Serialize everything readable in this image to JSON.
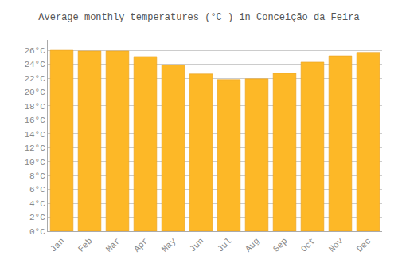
{
  "chart_data": {
    "type": "bar",
    "title": "Average monthly temperatures (°C ) in Conceição da Feira",
    "categories": [
      "Jan",
      "Feb",
      "Mar",
      "Apr",
      "May",
      "Jun",
      "Jul",
      "Aug",
      "Sep",
      "Oct",
      "Nov",
      "Dec"
    ],
    "values": [
      26.0,
      25.9,
      25.9,
      25.1,
      23.9,
      22.6,
      21.8,
      21.9,
      22.7,
      24.3,
      25.2,
      25.7
    ],
    "color": "#FDB827",
    "ylim": [
      0,
      27.5
    ],
    "yticks": [
      {
        "value": 0,
        "label": "0°C"
      },
      {
        "value": 2,
        "label": "2°C"
      },
      {
        "value": 4,
        "label": "4°C"
      },
      {
        "value": 6,
        "label": "6°C"
      },
      {
        "value": 8,
        "label": "8°C"
      },
      {
        "value": 10,
        "label": "10°C"
      },
      {
        "value": 12,
        "label": "12°C"
      },
      {
        "value": 14,
        "label": "14°C"
      },
      {
        "value": 16,
        "label": "16°C"
      },
      {
        "value": 18,
        "label": "18°C"
      },
      {
        "value": 20,
        "label": "20°C"
      },
      {
        "value": 22,
        "label": "22°C"
      },
      {
        "value": 24,
        "label": "24°C"
      },
      {
        "value": 26,
        "label": "26°C"
      }
    ],
    "grid": true
  }
}
